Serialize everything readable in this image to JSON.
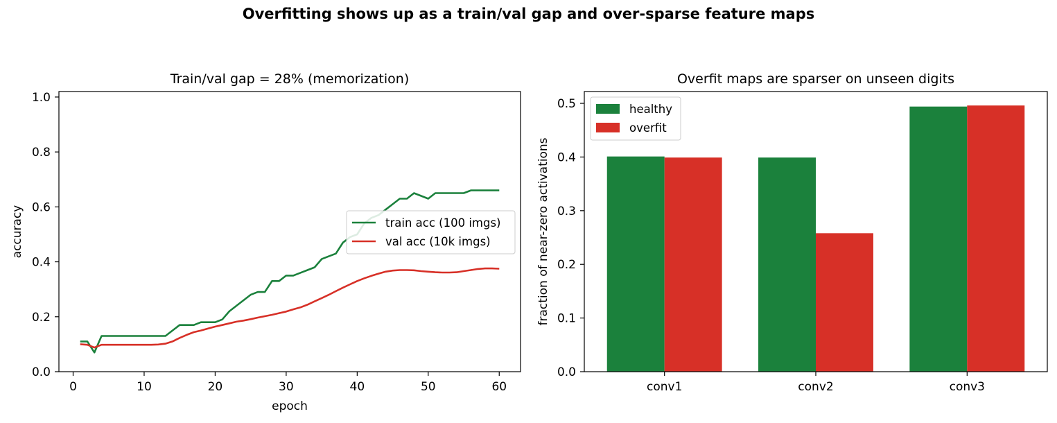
{
  "figure": {
    "title": "Overfitting shows up as a train/val gap and over-sparse feature maps"
  },
  "colors": {
    "green": "#1b813c",
    "red": "#d73027",
    "axes": "#000000",
    "legend_border": "#cccccc"
  },
  "chart_data": [
    {
      "type": "line",
      "title": "Train/val gap = 28% (memorization)",
      "xlabel": "epoch",
      "ylabel": "accuracy",
      "xlim": [
        -2,
        63
      ],
      "ylim": [
        0.0,
        1.02
      ],
      "xticks": [
        0,
        10,
        20,
        30,
        40,
        50,
        60
      ],
      "xtick_labels": [
        "0",
        "10",
        "20",
        "30",
        "40",
        "50",
        "60"
      ],
      "yticks": [
        0.0,
        0.2,
        0.4,
        0.6,
        0.8,
        1.0
      ],
      "ytick_labels": [
        "0.0",
        "0.2",
        "0.4",
        "0.6",
        "0.8",
        "1.0"
      ],
      "grid": false,
      "legend_position": "center-right",
      "x": [
        1,
        2,
        3,
        4,
        5,
        6,
        7,
        8,
        9,
        10,
        11,
        12,
        13,
        14,
        15,
        16,
        17,
        18,
        19,
        20,
        21,
        22,
        23,
        24,
        25,
        26,
        27,
        28,
        29,
        30,
        31,
        32,
        33,
        34,
        35,
        36,
        37,
        38,
        39,
        40,
        41,
        42,
        43,
        44,
        45,
        46,
        47,
        48,
        49,
        50,
        51,
        52,
        53,
        54,
        55,
        56,
        57,
        58,
        59,
        60
      ],
      "series": [
        {
          "name": "train acc (100 imgs)",
          "color": "#1b813c",
          "values": [
            0.11,
            0.11,
            0.07,
            0.13,
            0.13,
            0.13,
            0.13,
            0.13,
            0.13,
            0.13,
            0.13,
            0.13,
            0.13,
            0.15,
            0.17,
            0.17,
            0.17,
            0.18,
            0.18,
            0.18,
            0.19,
            0.22,
            0.24,
            0.26,
            0.28,
            0.29,
            0.29,
            0.33,
            0.33,
            0.35,
            0.35,
            0.36,
            0.37,
            0.38,
            0.41,
            0.42,
            0.43,
            0.47,
            0.49,
            0.5,
            0.54,
            0.56,
            0.57,
            0.59,
            0.61,
            0.63,
            0.63,
            0.65,
            0.64,
            0.63,
            0.65,
            0.65,
            0.65,
            0.65,
            0.65,
            0.66,
            0.66,
            0.66,
            0.66,
            0.66
          ]
        },
        {
          "name": "val acc (10k imgs)",
          "color": "#d73027",
          "values": [
            0.1,
            0.098,
            0.088,
            0.098,
            0.098,
            0.098,
            0.098,
            0.098,
            0.098,
            0.098,
            0.098,
            0.099,
            0.102,
            0.11,
            0.123,
            0.134,
            0.144,
            0.15,
            0.157,
            0.164,
            0.17,
            0.176,
            0.182,
            0.186,
            0.191,
            0.197,
            0.202,
            0.207,
            0.213,
            0.219,
            0.227,
            0.234,
            0.244,
            0.256,
            0.268,
            0.28,
            0.293,
            0.306,
            0.318,
            0.33,
            0.34,
            0.349,
            0.357,
            0.364,
            0.368,
            0.37,
            0.37,
            0.369,
            0.366,
            0.364,
            0.362,
            0.361,
            0.361,
            0.362,
            0.366,
            0.37,
            0.374,
            0.376,
            0.376,
            0.375
          ]
        }
      ]
    },
    {
      "type": "bar",
      "title": "Overfit maps are sparser on unseen digits",
      "xlabel": "",
      "ylabel": "fraction of near-zero activations",
      "ylim": [
        0.0,
        0.522
      ],
      "yticks": [
        0.0,
        0.1,
        0.2,
        0.3,
        0.4,
        0.5
      ],
      "ytick_labels": [
        "0.0",
        "0.1",
        "0.2",
        "0.3",
        "0.4",
        "0.5"
      ],
      "categories": [
        "conv1",
        "conv2",
        "conv3"
      ],
      "grid": false,
      "legend_position": "top-left",
      "series": [
        {
          "name": "healthy",
          "color": "#1b813c",
          "values": [
            0.401,
            0.399,
            0.494
          ]
        },
        {
          "name": "overfit",
          "color": "#d73027",
          "values": [
            0.399,
            0.258,
            0.496
          ]
        }
      ]
    }
  ]
}
